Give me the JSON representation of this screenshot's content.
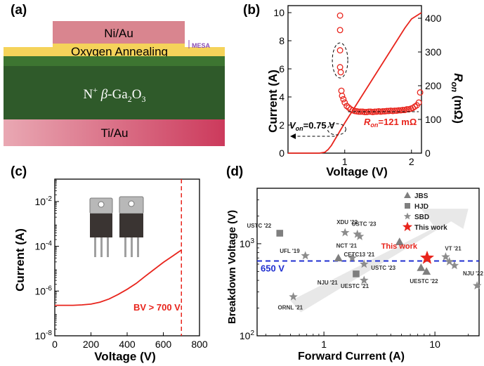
{
  "panels": {
    "a": {
      "label": "(a)",
      "layers": {
        "top_metal": "Ni/Au",
        "annealing": "Oxygen Annealing",
        "mesa": "MESA",
        "substrate_prefix": "N",
        "substrate_sup": "+",
        "substrate_beta": "β",
        "substrate_dash": "-Ga",
        "substrate_sub1": "2",
        "substrate_o": "O",
        "substrate_sub2": "3",
        "bottom_metal": "Ti/Au"
      },
      "colors": {
        "top_metal": "#d9858f",
        "annealing": "#f5d35a",
        "substrate": "#2f5a2a",
        "bottom_metal": "#d4506a"
      }
    },
    "b": {
      "label": "(b)",
      "von_label": "V",
      "von_sub": "on",
      "von_value": "=0.75 V",
      "ron_label": "R",
      "ron_sub": "on",
      "ron_value": "=121 mΩ"
    },
    "c": {
      "label": "(c)",
      "bv_annotation": "BV > 700 V"
    },
    "d": {
      "label": "(d)",
      "ref_line_label": "650 V",
      "highlight_label": "This work"
    }
  },
  "chart_data": [
    {
      "panel": "b",
      "type": "line",
      "xlabel": "Voltage (V)",
      "ylabel_left": "Current (A)",
      "ylabel_right_main": "R",
      "ylabel_right_sub": "on",
      "ylabel_right_unit": " (mΩ)",
      "xlim": [
        0.15,
        2.15
      ],
      "x_ticks": [
        1,
        2
      ],
      "ylim_left": [
        0,
        10.5
      ],
      "y_ticks_left": [
        0,
        2,
        4,
        6,
        8,
        10
      ],
      "ylim_right": [
        0,
        437.5
      ],
      "y_ticks_right": [
        0,
        100,
        200,
        300,
        400
      ],
      "accent": "#e8241c",
      "series": [
        {
          "kind": "current",
          "axis": "left",
          "x": [
            0.15,
            0.62,
            0.7,
            0.75,
            0.8,
            0.85,
            0.9,
            0.95,
            1.0,
            1.1,
            1.2,
            1.3,
            1.4,
            1.5,
            1.6,
            1.7,
            1.8,
            1.9,
            2.0,
            2.1,
            2.15
          ],
          "y": [
            0,
            0,
            0.06,
            0.25,
            0.55,
            0.95,
            1.35,
            1.75,
            2.15,
            2.9,
            3.65,
            4.4,
            5.15,
            5.9,
            6.65,
            7.4,
            8.15,
            8.9,
            9.55,
            9.85,
            10.0
          ]
        },
        {
          "kind": "resistance",
          "axis": "right",
          "x": [
            0.93,
            0.93,
            0.93,
            0.93,
            0.94,
            0.95,
            0.96,
            0.98,
            1.0,
            1.03,
            1.06,
            1.09,
            1.12,
            1.15,
            1.18,
            1.21,
            1.24,
            1.27,
            1.3,
            1.33,
            1.36,
            1.39,
            1.42,
            1.45,
            1.48,
            1.51,
            1.54,
            1.57,
            1.6,
            1.63,
            1.66,
            1.69,
            1.72,
            1.75,
            1.78,
            1.81,
            1.84,
            1.87,
            1.9,
            1.93,
            1.96,
            1.99,
            2.02,
            2.05,
            2.08,
            2.11,
            2.13
          ],
          "y": [
            408,
            365,
            305,
            255,
            240,
            185,
            170,
            160,
            150,
            140,
            135,
            130,
            127,
            125,
            124,
            123,
            123,
            123,
            122,
            122,
            123,
            123,
            122,
            123,
            123,
            124,
            123,
            124,
            124,
            125,
            125,
            126,
            125,
            126,
            126,
            127,
            127,
            128,
            128,
            130,
            130,
            132,
            134,
            138,
            142,
            150,
            180
          ]
        }
      ]
    },
    {
      "panel": "c",
      "type": "line",
      "xlabel": "Voltage (V)",
      "ylabel": "Current (A)",
      "xlim": [
        0,
        800
      ],
      "x_ticks": [
        0,
        200,
        400,
        600,
        800
      ],
      "y_scale": "log",
      "ylim": [
        1e-08,
        0.1
      ],
      "y_ticks_exp": [
        -8,
        -6,
        -4,
        -2
      ],
      "y_tick_base": "10",
      "line_color": "#e8241c",
      "marker_x": 700,
      "series": [
        {
          "x": [
            0,
            100,
            150,
            200,
            250,
            300,
            350,
            400,
            450,
            500,
            550,
            600,
            650,
            700
          ],
          "y": [
            2.3e-07,
            2.3e-07,
            2.4e-07,
            2.6e-07,
            3.2e-07,
            4.4e-07,
            7e-07,
            1.2e-06,
            2.2e-06,
            4.6e-06,
            9.3e-06,
            1.9e-05,
            3.6e-05,
            6.8e-05
          ]
        }
      ]
    },
    {
      "panel": "d",
      "type": "scatter",
      "xlabel": "Forward Current (A)",
      "ylabel": "Breakdown Voltage (V)",
      "x_scale": "log",
      "y_scale": "log",
      "xlim": [
        0.25,
        25
      ],
      "ylim": [
        100,
        4000
      ],
      "x_ticks": [
        1,
        10
      ],
      "y_ticks": [
        100,
        1000
      ],
      "y_tick_labels": [
        {
          "base": "10",
          "exp": "2"
        },
        {
          "base": "10",
          "exp": "3"
        }
      ],
      "ref_line": 650,
      "legend": [
        {
          "name": "JBS",
          "marker": "triangle",
          "color": "#808080"
        },
        {
          "name": "HJD",
          "marker": "square",
          "color": "#808080"
        },
        {
          "name": "SBD",
          "marker": "star",
          "color": "#808080"
        },
        {
          "name": "This work",
          "marker": "star",
          "color": "#e8241c"
        }
      ],
      "points": [
        {
          "label": "USTC '22",
          "x": 0.4,
          "y": 1300,
          "marker": "square"
        },
        {
          "label": "UFL '19",
          "x": 0.68,
          "y": 740,
          "marker": "star"
        },
        {
          "label": "NJU '21",
          "x": 1.35,
          "y": 700,
          "marker": "triangle"
        },
        {
          "label": "ORNL '21",
          "x": 0.53,
          "y": 265,
          "marker": "star"
        },
        {
          "label": "XDU '22",
          "x": 1.55,
          "y": 1320,
          "marker": "star"
        },
        {
          "label": "USTC '23",
          "x": 2.0,
          "y": 1270,
          "marker": "star"
        },
        {
          "label": "NCT '21",
          "x": 2.1,
          "y": 1200,
          "marker": "star"
        },
        {
          "label": "CETC13 '21",
          "x": 1.8,
          "y": 700,
          "marker": "star"
        },
        {
          "label": "USTC '23",
          "x": 2.3,
          "y": 600,
          "marker": "star"
        },
        {
          "label": "UESTC '21",
          "x": 1.95,
          "y": 470,
          "marker": "square"
        },
        {
          "label": "UESTC '21",
          "x": 2.3,
          "y": 400,
          "marker": "star"
        },
        {
          "label": "",
          "x": 4.8,
          "y": 1050,
          "marker": "triangle"
        },
        {
          "label": "UESTC '22",
          "x": 7.5,
          "y": 550,
          "marker": "triangle"
        },
        {
          "label": "",
          "x": 8.4,
          "y": 500,
          "marker": "triangle"
        },
        {
          "label": "This work",
          "x": 8.5,
          "y": 700,
          "marker": "star-red"
        },
        {
          "label": "VT '21",
          "x": 12.5,
          "y": 720,
          "marker": "star"
        },
        {
          "label": "",
          "x": 13.5,
          "y": 640,
          "marker": "star"
        },
        {
          "label": "NJU '22",
          "x": 15.0,
          "y": 580,
          "marker": "star"
        },
        {
          "label": "",
          "x": 24.0,
          "y": 350,
          "marker": "star"
        }
      ]
    }
  ]
}
